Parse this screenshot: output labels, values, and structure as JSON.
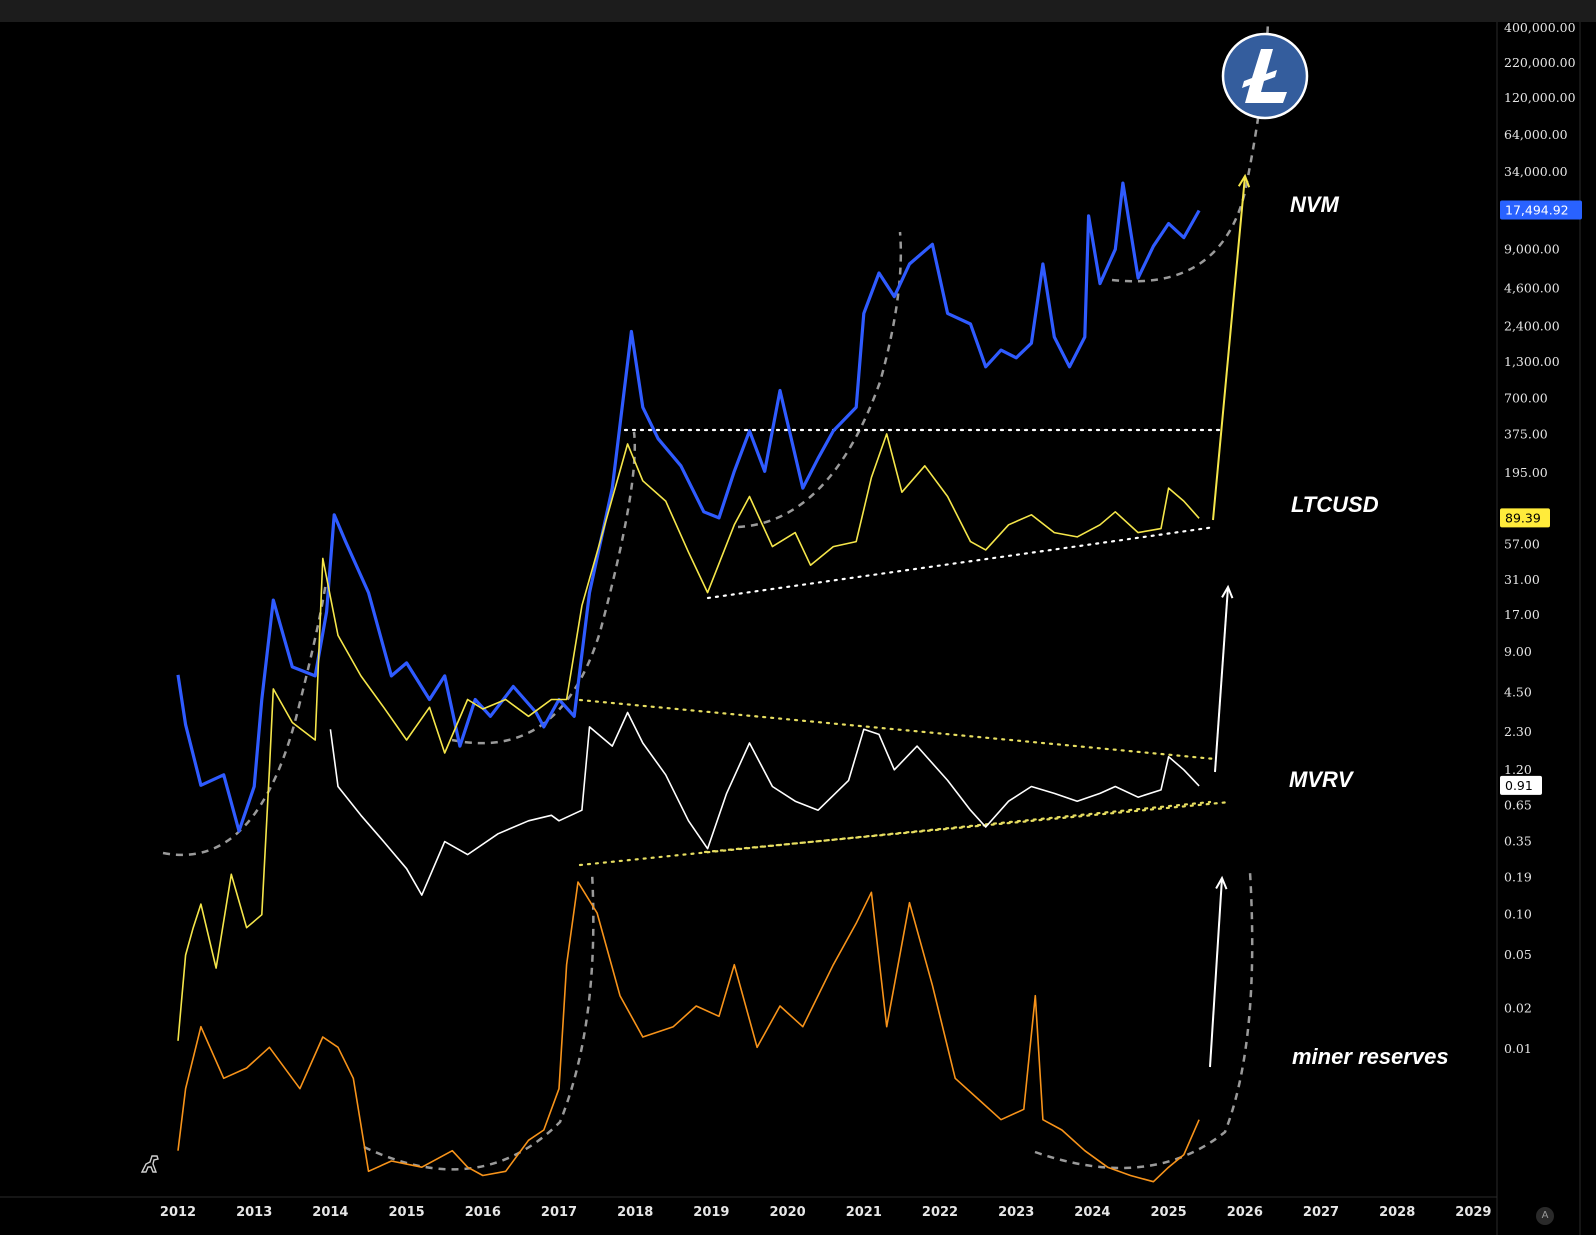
{
  "y_axis_ticks": [
    "400,000.00",
    "220,000.00",
    "120,000.00",
    "64,000.00",
    "34,000.00",
    "9,000.00",
    "4,600.00",
    "2,400.00",
    "1,300.00",
    "700.00",
    "375.00",
    "195.00",
    "57.00",
    "31.00",
    "17.00",
    "9.00",
    "4.50",
    "2.30",
    "1.20",
    "0.65",
    "0.35",
    "0.19",
    "0.10",
    "0.05",
    "0.02",
    "0.01"
  ],
  "x_axis_ticks": [
    "2012",
    "2013",
    "2014",
    "2015",
    "2016",
    "2017",
    "2018",
    "2019",
    "2020",
    "2021",
    "2022",
    "2023",
    "2024",
    "2025",
    "2026",
    "2027",
    "2028",
    "2029"
  ],
  "price_badges": [
    {
      "value": "17,494.92",
      "bg": "#2962ff",
      "fg": "#ffffff"
    },
    {
      "value": "89.39",
      "bg": "#ffeb3b",
      "fg": "#000000"
    },
    {
      "value": "0.91",
      "bg": "#ffffff",
      "fg": "#000000"
    }
  ],
  "series_labels": {
    "nvm": "NVM",
    "ltcusd": "LTCUSD",
    "mvrv": "MVRV",
    "miner": "miner reserves"
  },
  "auto_button": "A",
  "colors": {
    "nvm": "#2f5bff",
    "ltcusd": "#f5e64a",
    "mvrv": "#ffffff",
    "miner": "#f7931a",
    "guide": "#9a9a9a",
    "dots": "#e6dd60",
    "logo": "#345d9d"
  },
  "logo_icon": "litecoin-logo",
  "chart_data": {
    "type": "line",
    "scale": "log",
    "x_range": [
      2011.9,
      2029.0
    ],
    "series": [
      {
        "name": "NVM",
        "values": [
          [
            2012.0,
            6.1
          ],
          [
            2012.1,
            2.6
          ],
          [
            2012.3,
            0.92
          ],
          [
            2012.6,
            1.1
          ],
          [
            2012.8,
            0.42
          ],
          [
            2013.0,
            0.9
          ],
          [
            2013.1,
            4.0
          ],
          [
            2013.25,
            22
          ],
          [
            2013.5,
            7.0
          ],
          [
            2013.8,
            6.0
          ],
          [
            2013.95,
            18
          ],
          [
            2014.05,
            95
          ],
          [
            2014.2,
            60
          ],
          [
            2014.5,
            25
          ],
          [
            2014.8,
            6.0
          ],
          [
            2015.0,
            7.5
          ],
          [
            2015.3,
            4.0
          ],
          [
            2015.5,
            6.0
          ],
          [
            2015.7,
            1.8
          ],
          [
            2015.9,
            4.0
          ],
          [
            2016.1,
            3.0
          ],
          [
            2016.4,
            5.0
          ],
          [
            2016.7,
            3.2
          ],
          [
            2016.8,
            2.5
          ],
          [
            2017.0,
            4.0
          ],
          [
            2017.2,
            3.0
          ],
          [
            2017.4,
            25
          ],
          [
            2017.7,
            150
          ],
          [
            2017.95,
            2200
          ],
          [
            2018.1,
            600
          ],
          [
            2018.3,
            350
          ],
          [
            2018.6,
            220
          ],
          [
            2018.9,
            100
          ],
          [
            2019.1,
            90
          ],
          [
            2019.3,
            200
          ],
          [
            2019.5,
            400
          ],
          [
            2019.7,
            200
          ],
          [
            2019.9,
            800
          ],
          [
            2020.2,
            150
          ],
          [
            2020.4,
            250
          ],
          [
            2020.6,
            400
          ],
          [
            2020.9,
            600
          ],
          [
            2021.0,
            3000
          ],
          [
            2021.2,
            6000
          ],
          [
            2021.4,
            4000
          ],
          [
            2021.6,
            7000
          ],
          [
            2021.9,
            9800
          ],
          [
            2022.1,
            3000
          ],
          [
            2022.4,
            2500
          ],
          [
            2022.6,
            1200
          ],
          [
            2022.8,
            1600
          ],
          [
            2023.0,
            1400
          ],
          [
            2023.2,
            1800
          ],
          [
            2023.35,
            7000
          ],
          [
            2023.5,
            2000
          ],
          [
            2023.7,
            1200
          ],
          [
            2023.9,
            2000
          ],
          [
            2023.95,
            16000
          ],
          [
            2024.1,
            5000
          ],
          [
            2024.3,
            9000
          ],
          [
            2024.4,
            28000
          ],
          [
            2024.6,
            5500
          ],
          [
            2024.8,
            9500
          ],
          [
            2025.0,
            14000
          ],
          [
            2025.2,
            11000
          ],
          [
            2025.4,
            17494.92
          ]
        ]
      },
      {
        "name": "LTCUSD",
        "values": [
          [
            2012.0,
            0.0115
          ],
          [
            2012.1,
            0.05
          ],
          [
            2012.2,
            0.08
          ],
          [
            2012.3,
            0.12
          ],
          [
            2012.5,
            0.04
          ],
          [
            2012.7,
            0.2
          ],
          [
            2012.9,
            0.08
          ],
          [
            2013.1,
            0.1
          ],
          [
            2013.2,
            1.2
          ],
          [
            2013.25,
            4.8
          ],
          [
            2013.5,
            2.7
          ],
          [
            2013.8,
            2.0
          ],
          [
            2013.9,
            45
          ],
          [
            2014.1,
            12
          ],
          [
            2014.4,
            6
          ],
          [
            2014.7,
            3.5
          ],
          [
            2015.0,
            2.0
          ],
          [
            2015.3,
            3.5
          ],
          [
            2015.5,
            1.6
          ],
          [
            2015.8,
            4.0
          ],
          [
            2016.0,
            3.4
          ],
          [
            2016.3,
            4.0
          ],
          [
            2016.6,
            3.0
          ],
          [
            2016.9,
            4.0
          ],
          [
            2017.1,
            4.0
          ],
          [
            2017.3,
            20
          ],
          [
            2017.5,
            50
          ],
          [
            2017.9,
            320
          ],
          [
            2018.1,
            170
          ],
          [
            2018.4,
            120
          ],
          [
            2018.7,
            50
          ],
          [
            2018.95,
            25
          ],
          [
            2019.3,
            80
          ],
          [
            2019.5,
            130
          ],
          [
            2019.8,
            55
          ],
          [
            2020.1,
            70
          ],
          [
            2020.3,
            40
          ],
          [
            2020.6,
            55
          ],
          [
            2020.9,
            60
          ],
          [
            2021.1,
            180
          ],
          [
            2021.3,
            380
          ],
          [
            2021.5,
            140
          ],
          [
            2021.8,
            220
          ],
          [
            2022.1,
            130
          ],
          [
            2022.4,
            60
          ],
          [
            2022.6,
            52
          ],
          [
            2022.9,
            80
          ],
          [
            2023.2,
            95
          ],
          [
            2023.5,
            70
          ],
          [
            2023.8,
            65
          ],
          [
            2024.1,
            80
          ],
          [
            2024.3,
            100
          ],
          [
            2024.6,
            70
          ],
          [
            2024.9,
            75
          ],
          [
            2025.0,
            150
          ],
          [
            2025.2,
            120
          ],
          [
            2025.4,
            89.39
          ]
        ]
      },
      {
        "name": "MVRV",
        "values": [
          [
            2014.0,
            2.4
          ],
          [
            2014.1,
            0.9
          ],
          [
            2014.4,
            0.55
          ],
          [
            2014.7,
            0.35
          ],
          [
            2015.0,
            0.22
          ],
          [
            2015.2,
            0.14
          ],
          [
            2015.5,
            0.35
          ],
          [
            2015.8,
            0.28
          ],
          [
            2016.2,
            0.4
          ],
          [
            2016.6,
            0.5
          ],
          [
            2016.9,
            0.55
          ],
          [
            2017.0,
            0.5
          ],
          [
            2017.3,
            0.6
          ],
          [
            2017.4,
            2.5
          ],
          [
            2017.7,
            1.8
          ],
          [
            2017.9,
            3.2
          ],
          [
            2018.1,
            1.9
          ],
          [
            2018.4,
            1.1
          ],
          [
            2018.7,
            0.5
          ],
          [
            2018.95,
            0.31
          ],
          [
            2019.2,
            0.8
          ],
          [
            2019.5,
            1.9
          ],
          [
            2019.8,
            0.9
          ],
          [
            2020.1,
            0.7
          ],
          [
            2020.4,
            0.6
          ],
          [
            2020.8,
            1.0
          ],
          [
            2021.0,
            2.4
          ],
          [
            2021.2,
            2.2
          ],
          [
            2021.4,
            1.2
          ],
          [
            2021.7,
            1.8
          ],
          [
            2022.1,
            1.0
          ],
          [
            2022.4,
            0.6
          ],
          [
            2022.6,
            0.45
          ],
          [
            2022.9,
            0.7
          ],
          [
            2023.2,
            0.9
          ],
          [
            2023.5,
            0.8
          ],
          [
            2023.8,
            0.7
          ],
          [
            2024.1,
            0.8
          ],
          [
            2024.3,
            0.9
          ],
          [
            2024.6,
            0.75
          ],
          [
            2024.9,
            0.85
          ],
          [
            2025.0,
            1.5
          ],
          [
            2025.2,
            1.2
          ],
          [
            2025.4,
            0.91
          ]
        ]
      }
    ],
    "miner_reserves": {
      "name": "miner reserves",
      "scale": "relative",
      "values": [
        [
          2012.0,
          0.2
        ],
        [
          2012.1,
          0.5
        ],
        [
          2012.3,
          0.8
        ],
        [
          2012.6,
          0.55
        ],
        [
          2012.9,
          0.6
        ],
        [
          2013.2,
          0.7
        ],
        [
          2013.6,
          0.5
        ],
        [
          2013.9,
          0.75
        ],
        [
          2014.1,
          0.7
        ],
        [
          2014.3,
          0.55
        ],
        [
          2014.5,
          0.1
        ],
        [
          2014.8,
          0.15
        ],
        [
          2015.2,
          0.12
        ],
        [
          2015.6,
          0.2
        ],
        [
          2015.8,
          0.12
        ],
        [
          2016.0,
          0.08
        ],
        [
          2016.3,
          0.1
        ],
        [
          2016.6,
          0.25
        ],
        [
          2016.8,
          0.3
        ],
        [
          2017.0,
          0.5
        ],
        [
          2017.1,
          1.1
        ],
        [
          2017.25,
          1.5
        ],
        [
          2017.5,
          1.35
        ],
        [
          2017.8,
          0.95
        ],
        [
          2018.1,
          0.75
        ],
        [
          2018.5,
          0.8
        ],
        [
          2018.8,
          0.9
        ],
        [
          2019.1,
          0.85
        ],
        [
          2019.3,
          1.1
        ],
        [
          2019.6,
          0.7
        ],
        [
          2019.9,
          0.9
        ],
        [
          2020.2,
          0.8
        ],
        [
          2020.6,
          1.1
        ],
        [
          2020.9,
          1.3
        ],
        [
          2021.1,
          1.45
        ],
        [
          2021.3,
          0.8
        ],
        [
          2021.6,
          1.4
        ],
        [
          2021.9,
          1.0
        ],
        [
          2022.2,
          0.55
        ],
        [
          2022.5,
          0.45
        ],
        [
          2022.8,
          0.35
        ],
        [
          2023.1,
          0.4
        ],
        [
          2023.25,
          0.95
        ],
        [
          2023.35,
          0.35
        ],
        [
          2023.6,
          0.3
        ],
        [
          2023.9,
          0.2
        ],
        [
          2024.2,
          0.12
        ],
        [
          2024.5,
          0.08
        ],
        [
          2024.8,
          0.05
        ],
        [
          2025.0,
          0.12
        ],
        [
          2025.2,
          0.18
        ],
        [
          2025.4,
          0.35
        ]
      ]
    },
    "annotations": [
      "NVM",
      "LTCUSD",
      "MVRV",
      "miner reserves"
    ],
    "grid": false
  }
}
